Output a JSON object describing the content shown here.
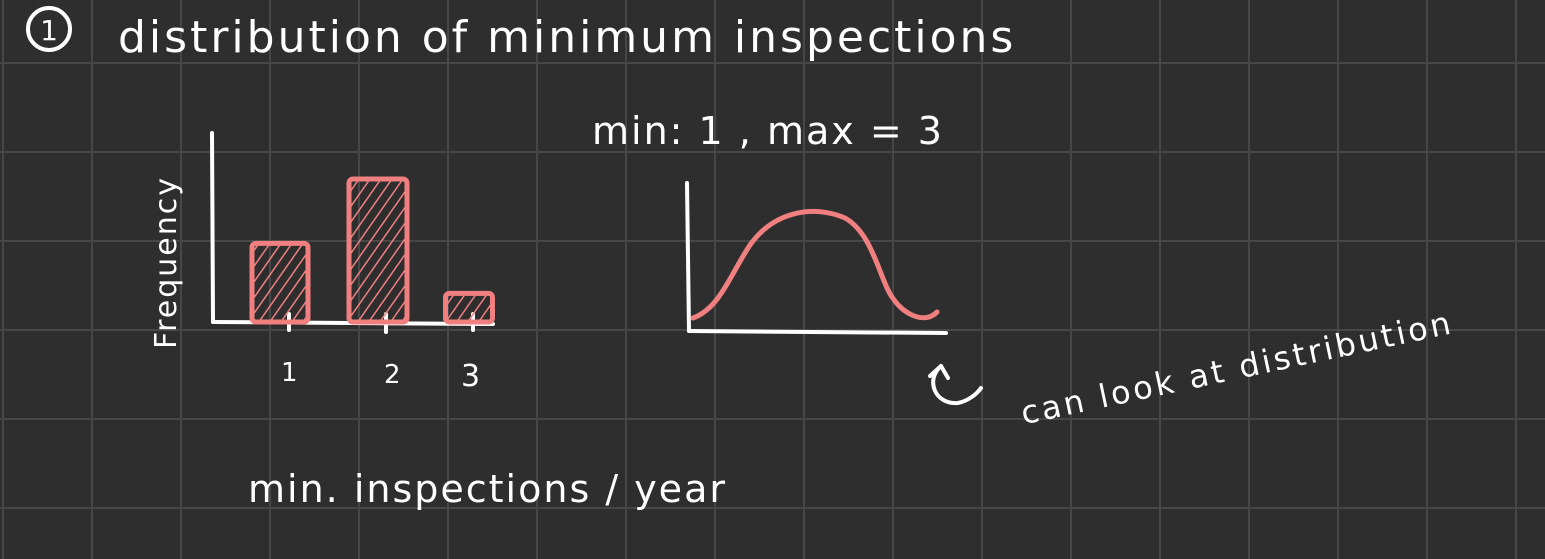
{
  "title": "distribution of minimum inspections",
  "item_number": "1",
  "stats_text": "min: 1 , max = 3",
  "histogram": {
    "ylabel": "Frequency",
    "xlabel": "min. inspections / year",
    "tick_labels": [
      "1",
      "2",
      "3"
    ]
  },
  "curve_note": "can look at distribution",
  "colors": {
    "background": "#2e2e2e",
    "grid": "#474747",
    "ink": "#ffffff",
    "accent": "#f08080"
  },
  "chart_data": {
    "type": "bar",
    "title": "",
    "categories": [
      "1",
      "2",
      "3"
    ],
    "values": [
      0.55,
      1.0,
      0.2
    ],
    "xlabel": "min. inspections / year",
    "ylabel": "Frequency",
    "grid": false
  }
}
